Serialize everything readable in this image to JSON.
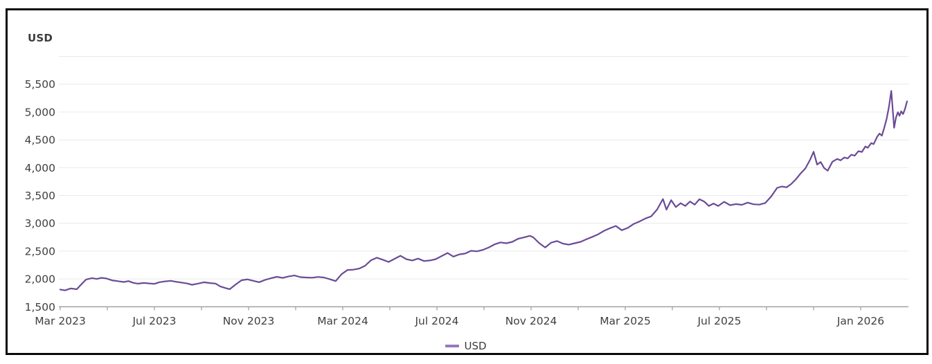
{
  "title": "USD",
  "legend": {
    "label": "USD",
    "swatch_color": "#9678bb"
  },
  "colors": {
    "background": "#ffffff",
    "frame_border": "#0a0a0a",
    "line": "#6a4a97",
    "grid": "#e9e9e9",
    "axis": "#9a9a9a",
    "tick_label": "#404040",
    "title_text": "#3c3c3c"
  },
  "chart_data": {
    "type": "line",
    "title": "USD",
    "ylabel": "USD",
    "xlabel": "",
    "ylim": [
      1500,
      6000
    ],
    "grid": "horizontal",
    "legend_position": "bottom-center",
    "x_axis_note": "t = months since Mar 2023; minor ticks every 2 months",
    "minor_tick_step_months": 2,
    "minor_tick_range_months": [
      0,
      34
    ],
    "y_ticks": [
      {
        "label": "",
        "value": 6000
      },
      {
        "label": "5,500",
        "value": 5500
      },
      {
        "label": "5,000",
        "value": 5000
      },
      {
        "label": "4,500",
        "value": 4500
      },
      {
        "label": "4,000",
        "value": 4000
      },
      {
        "label": "3,500",
        "value": 3500
      },
      {
        "label": "3,000",
        "value": 3000
      },
      {
        "label": "2,500",
        "value": 2500
      },
      {
        "label": "2,000",
        "value": 2000
      },
      {
        "label": "1,500",
        "value": 1500
      }
    ],
    "x_tick_labels": [
      {
        "label": "Mar 2023",
        "t": 0
      },
      {
        "label": "Jul 2023",
        "t": 4
      },
      {
        "label": "Nov 2023",
        "t": 8
      },
      {
        "label": "Mar 2024",
        "t": 12
      },
      {
        "label": "Jul 2024",
        "t": 16
      },
      {
        "label": "Nov 2024",
        "t": 20
      },
      {
        "label": "Mar 2025",
        "t": 24
      },
      {
        "label": "Jul 2025",
        "t": 28
      },
      {
        "label": "Jan 2026",
        "t": 34
      }
    ],
    "series": [
      {
        "name": "USD",
        "color": "#6a4a97",
        "points": [
          [
            0,
            1810
          ],
          [
            0.2,
            1795
          ],
          [
            0.45,
            1830
          ],
          [
            0.7,
            1815
          ],
          [
            0.9,
            1905
          ],
          [
            1.1,
            1990
          ],
          [
            1.35,
            2015
          ],
          [
            1.55,
            2000
          ],
          [
            1.75,
            2020
          ],
          [
            1.95,
            2010
          ],
          [
            2.2,
            1975
          ],
          [
            2.45,
            1960
          ],
          [
            2.7,
            1945
          ],
          [
            2.9,
            1962
          ],
          [
            3.1,
            1930
          ],
          [
            3.3,
            1915
          ],
          [
            3.55,
            1928
          ],
          [
            3.75,
            1920
          ],
          [
            4,
            1912
          ],
          [
            4.2,
            1940
          ],
          [
            4.45,
            1957
          ],
          [
            4.7,
            1966
          ],
          [
            4.9,
            1950
          ],
          [
            5.15,
            1935
          ],
          [
            5.4,
            1918
          ],
          [
            5.6,
            1895
          ],
          [
            5.85,
            1917
          ],
          [
            6.1,
            1940
          ],
          [
            6.35,
            1927
          ],
          [
            6.6,
            1916
          ],
          [
            6.8,
            1866
          ],
          [
            7.05,
            1832
          ],
          [
            7.2,
            1816
          ],
          [
            7.45,
            1900
          ],
          [
            7.7,
            1976
          ],
          [
            7.95,
            1992
          ],
          [
            8.2,
            1966
          ],
          [
            8.45,
            1942
          ],
          [
            8.7,
            1982
          ],
          [
            8.95,
            2012
          ],
          [
            9.2,
            2038
          ],
          [
            9.45,
            2018
          ],
          [
            9.7,
            2046
          ],
          [
            9.95,
            2062
          ],
          [
            10.2,
            2032
          ],
          [
            10.45,
            2026
          ],
          [
            10.7,
            2022
          ],
          [
            10.95,
            2036
          ],
          [
            11.2,
            2026
          ],
          [
            11.45,
            1996
          ],
          [
            11.7,
            1962
          ],
          [
            11.95,
            2086
          ],
          [
            12.2,
            2160
          ],
          [
            12.45,
            2166
          ],
          [
            12.7,
            2186
          ],
          [
            12.95,
            2238
          ],
          [
            13.2,
            2336
          ],
          [
            13.45,
            2382
          ],
          [
            13.7,
            2346
          ],
          [
            13.95,
            2306
          ],
          [
            14.2,
            2362
          ],
          [
            14.45,
            2416
          ],
          [
            14.7,
            2356
          ],
          [
            14.95,
            2332
          ],
          [
            15.2,
            2366
          ],
          [
            15.45,
            2322
          ],
          [
            15.7,
            2332
          ],
          [
            15.95,
            2356
          ],
          [
            16.2,
            2412
          ],
          [
            16.45,
            2466
          ],
          [
            16.7,
            2402
          ],
          [
            16.95,
            2442
          ],
          [
            17.2,
            2456
          ],
          [
            17.45,
            2506
          ],
          [
            17.7,
            2496
          ],
          [
            17.95,
            2522
          ],
          [
            18.2,
            2566
          ],
          [
            18.45,
            2622
          ],
          [
            18.7,
            2656
          ],
          [
            18.95,
            2642
          ],
          [
            19.2,
            2666
          ],
          [
            19.45,
            2722
          ],
          [
            19.7,
            2746
          ],
          [
            19.95,
            2776
          ],
          [
            20.1,
            2746
          ],
          [
            20.35,
            2642
          ],
          [
            20.6,
            2566
          ],
          [
            20.85,
            2652
          ],
          [
            21.1,
            2682
          ],
          [
            21.35,
            2636
          ],
          [
            21.6,
            2616
          ],
          [
            21.85,
            2642
          ],
          [
            22.1,
            2666
          ],
          [
            22.35,
            2712
          ],
          [
            22.6,
            2756
          ],
          [
            22.85,
            2802
          ],
          [
            23.1,
            2866
          ],
          [
            23.35,
            2912
          ],
          [
            23.6,
            2952
          ],
          [
            23.85,
            2876
          ],
          [
            24.1,
            2916
          ],
          [
            24.35,
            2986
          ],
          [
            24.6,
            3032
          ],
          [
            24.85,
            3086
          ],
          [
            25.1,
            3126
          ],
          [
            25.35,
            3246
          ],
          [
            25.6,
            3436
          ],
          [
            25.75,
            3246
          ],
          [
            25.95,
            3416
          ],
          [
            26.15,
            3292
          ],
          [
            26.35,
            3362
          ],
          [
            26.55,
            3312
          ],
          [
            26.75,
            3392
          ],
          [
            26.95,
            3336
          ],
          [
            27.15,
            3432
          ],
          [
            27.35,
            3392
          ],
          [
            27.55,
            3312
          ],
          [
            27.75,
            3356
          ],
          [
            27.95,
            3312
          ],
          [
            28.2,
            3386
          ],
          [
            28.45,
            3326
          ],
          [
            28.7,
            3346
          ],
          [
            28.95,
            3332
          ],
          [
            29.2,
            3372
          ],
          [
            29.45,
            3342
          ],
          [
            29.7,
            3336
          ],
          [
            29.95,
            3366
          ],
          [
            30.2,
            3482
          ],
          [
            30.45,
            3636
          ],
          [
            30.65,
            3662
          ],
          [
            30.85,
            3646
          ],
          [
            31.05,
            3706
          ],
          [
            31.25,
            3792
          ],
          [
            31.45,
            3896
          ],
          [
            31.65,
            3986
          ],
          [
            31.85,
            4142
          ],
          [
            32,
            4286
          ],
          [
            32.15,
            4056
          ],
          [
            32.3,
            4102
          ],
          [
            32.45,
            3992
          ],
          [
            32.6,
            3946
          ],
          [
            32.8,
            4106
          ],
          [
            33,
            4156
          ],
          [
            33.15,
            4132
          ],
          [
            33.3,
            4182
          ],
          [
            33.45,
            4166
          ],
          [
            33.6,
            4232
          ],
          [
            33.75,
            4216
          ],
          [
            33.9,
            4296
          ],
          [
            34.05,
            4282
          ],
          [
            34.2,
            4382
          ],
          [
            34.3,
            4356
          ],
          [
            34.45,
            4442
          ],
          [
            34.55,
            4422
          ],
          [
            34.7,
            4556
          ],
          [
            34.8,
            4612
          ],
          [
            34.9,
            4576
          ],
          [
            35,
            4716
          ],
          [
            35.1,
            4872
          ],
          [
            35.2,
            5092
          ],
          [
            35.3,
            5380
          ],
          [
            35.42,
            4716
          ],
          [
            35.5,
            4902
          ],
          [
            35.58,
            4996
          ],
          [
            35.65,
            4932
          ],
          [
            35.72,
            5012
          ],
          [
            35.8,
            4962
          ],
          [
            35.88,
            5052
          ],
          [
            35.97,
            5192
          ]
        ]
      }
    ]
  }
}
